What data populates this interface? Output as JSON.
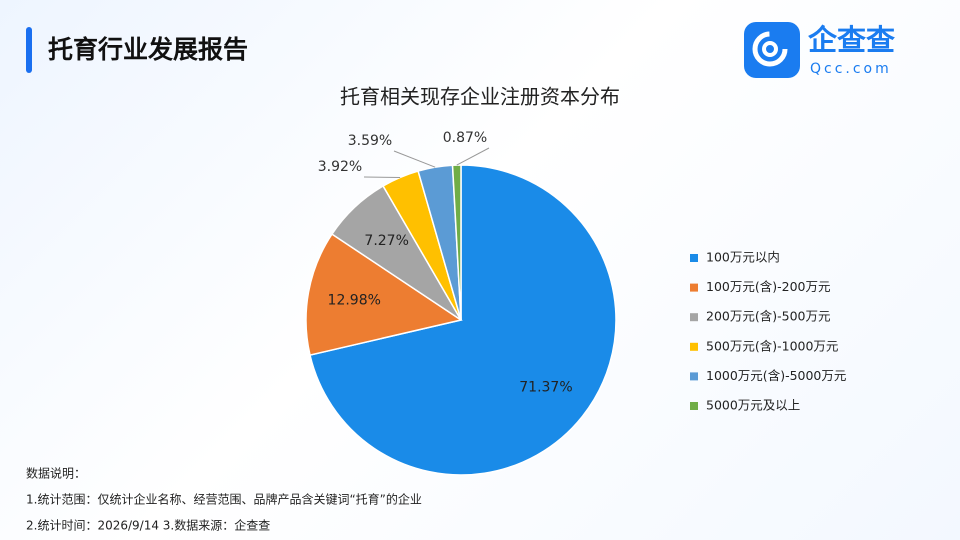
{
  "header": {
    "title": "托育行业发展报告",
    "logo": "企查查",
    "logo_sub": "Qcc.com"
  },
  "chart_data": {
    "type": "pie",
    "title": "托育相关现存企业注册资本分布",
    "categories": [
      "100万元以内",
      "100万元(含)-200万元",
      "200万元(含)-500万元",
      "500万元(含)-1000万元",
      "1000万元(含)-5000万元",
      "5000万元及以上"
    ],
    "values": [
      71.37,
      12.98,
      7.27,
      3.92,
      3.59,
      0.87
    ],
    "value_labels": [
      "71.37%",
      "12.98%",
      "7.27%",
      "3.92%",
      "3.59%",
      "0.87%"
    ],
    "colors": [
      "#1a8be8",
      "#ed7d31",
      "#a5a5a5",
      "#ffc000",
      "#5b9bd5",
      "#70ad47"
    ],
    "legend": "right"
  },
  "notes": [
    "数据说明：",
    "1.统计范围：仅统计企业名称、经营范围、品牌产品含关键词“托育”的企业",
    "2.统计时间：2026/9/14  3.数据来源：企查查"
  ]
}
